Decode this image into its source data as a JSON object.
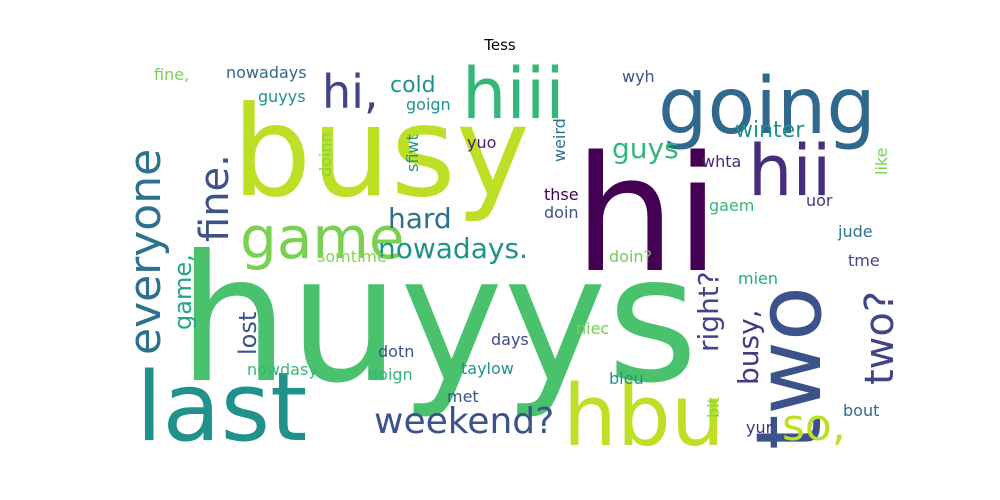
{
  "title": "Tess",
  "words": [
    {
      "text": "huyys",
      "color": "#4ac16d"
    },
    {
      "text": "hi",
      "color": "#440154"
    },
    {
      "text": "busy",
      "color": "#bddf26"
    },
    {
      "text": "last",
      "color": "#21918c"
    },
    {
      "text": "hbu",
      "color": "#bddf26"
    },
    {
      "text": "two",
      "color": "#3b528b"
    },
    {
      "text": "going",
      "color": "#31688e"
    },
    {
      "text": "hiii",
      "color": "#35b779"
    },
    {
      "text": "hii",
      "color": "#472d7b"
    },
    {
      "text": "game",
      "color": "#7ad151"
    },
    {
      "text": "everyone",
      "color": "#2c728e"
    },
    {
      "text": "fine.",
      "color": "#3b528b"
    },
    {
      "text": "hi,",
      "color": "#414487"
    },
    {
      "text": "so,",
      "color": "#bddf26"
    },
    {
      "text": "two?",
      "color": "#414487"
    },
    {
      "text": "weekend?",
      "color": "#3b528b"
    },
    {
      "text": "nowadays.",
      "color": "#21918c"
    },
    {
      "text": "hard",
      "color": "#2c728e"
    },
    {
      "text": "guys",
      "color": "#35b779"
    },
    {
      "text": "right?",
      "color": "#414487"
    },
    {
      "text": "busy,",
      "color": "#443983"
    },
    {
      "text": "game,",
      "color": "#22a884"
    },
    {
      "text": "lost",
      "color": "#3b528b"
    },
    {
      "text": "winter",
      "color": "#21918c"
    },
    {
      "text": "cold",
      "color": "#21918c"
    },
    {
      "text": "fine,",
      "color": "#7ad151"
    },
    {
      "text": "nowadays",
      "color": "#31688e"
    },
    {
      "text": "guyys",
      "color": "#21918c"
    },
    {
      "text": "goign",
      "color": "#21918c"
    },
    {
      "text": "wyh",
      "color": "#3b528b"
    },
    {
      "text": "yuo",
      "color": "#481f70"
    },
    {
      "text": "doinn",
      "color": "#86d549"
    },
    {
      "text": "sfiwt",
      "color": "#21918c"
    },
    {
      "text": "weird",
      "color": "#2c728e"
    },
    {
      "text": "whta",
      "color": "#482878"
    },
    {
      "text": "like",
      "color": "#7ad151"
    },
    {
      "text": "thse",
      "color": "#440154"
    },
    {
      "text": "doin",
      "color": "#3b528b"
    },
    {
      "text": "gaem",
      "color": "#35b779"
    },
    {
      "text": "uor",
      "color": "#443983"
    },
    {
      "text": "jude",
      "color": "#2c728e"
    },
    {
      "text": "somtime",
      "color": "#86d549"
    },
    {
      "text": "doin?",
      "color": "#6ece58"
    },
    {
      "text": "tme",
      "color": "#414487"
    },
    {
      "text": "mien",
      "color": "#22a884"
    },
    {
      "text": "days",
      "color": "#3e4989"
    },
    {
      "text": "niec",
      "color": "#6ece58"
    },
    {
      "text": "dotn",
      "color": "#3b528b"
    },
    {
      "text": "nowdasy",
      "color": "#35b779"
    },
    {
      "text": "doign",
      "color": "#35b779"
    },
    {
      "text": "taylow",
      "color": "#21918c"
    },
    {
      "text": "met",
      "color": "#3b528b"
    },
    {
      "text": "bleu",
      "color": "#21918c"
    },
    {
      "text": "bit",
      "color": "#86d549"
    },
    {
      "text": "bout",
      "color": "#31688e"
    },
    {
      "text": "yur",
      "color": "#472d7b"
    }
  ]
}
